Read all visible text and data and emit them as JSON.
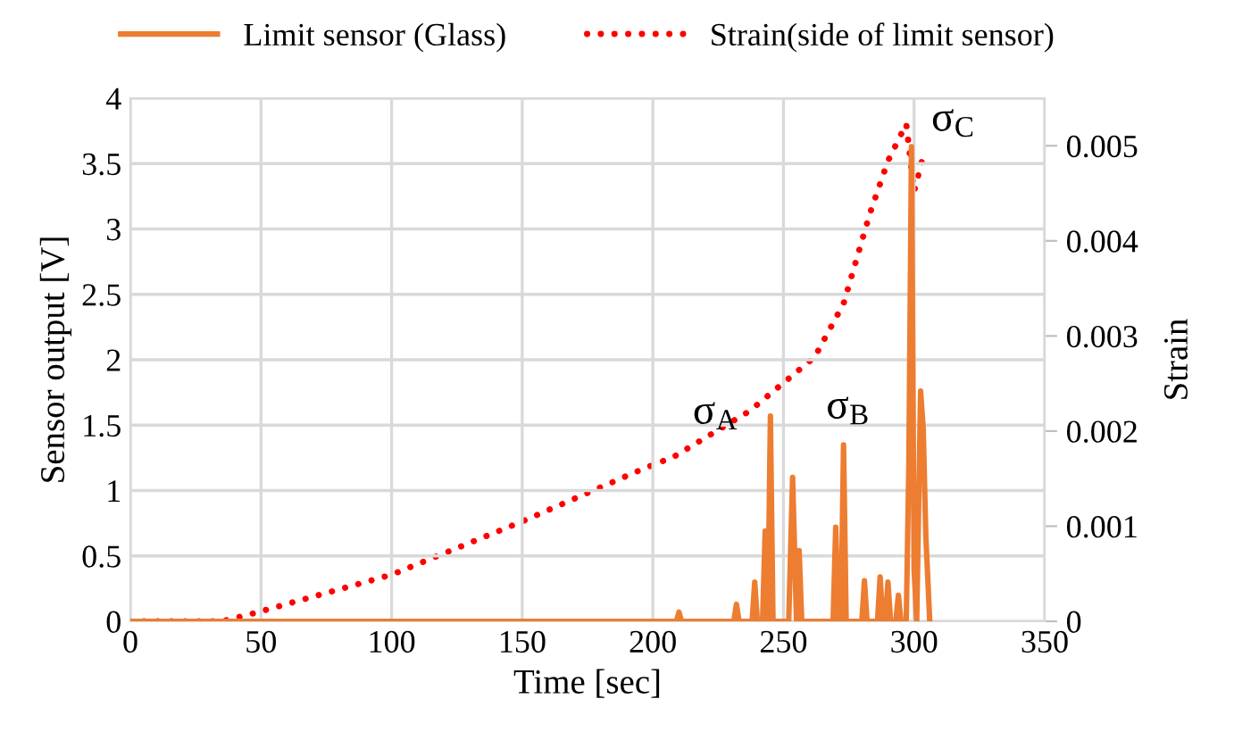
{
  "chart_data": {
    "type": "line",
    "xlabel": "Time [sec]",
    "ylabel": "Sensor output [V]",
    "y2label": "Strain",
    "xlim": [
      0,
      350
    ],
    "xticks": [
      0,
      50,
      100,
      150,
      200,
      250,
      300,
      350
    ],
    "ylim": [
      0,
      4
    ],
    "yticks": [
      0,
      0.5,
      1,
      1.5,
      2,
      2.5,
      3,
      3.5,
      4
    ],
    "y2lim": [
      0,
      0.0055
    ],
    "y2ticks": [
      0,
      0.001,
      0.002,
      0.003,
      0.004,
      0.005
    ],
    "grid": true,
    "legend": "top",
    "series": [
      {
        "name": "Limit sensor (Glass)",
        "color": "#ed7d31",
        "line_style": "solid",
        "x": [
          0,
          209,
          210,
          211,
          231,
          232,
          233,
          238,
          239,
          240,
          242,
          243,
          244,
          245,
          246,
          247,
          252,
          253.5,
          255,
          256,
          257,
          269,
          270,
          271,
          272,
          273,
          274,
          280,
          281,
          282,
          286,
          287,
          288,
          289,
          290,
          291,
          293,
          294,
          295,
          297,
          298,
          299,
          300,
          301,
          302.5,
          303.5,
          304.5,
          306
        ],
        "values": [
          0,
          0,
          0.07,
          0,
          0,
          0.13,
          0,
          0,
          0.3,
          0,
          0,
          0.69,
          0,
          1.57,
          0,
          0,
          0,
          1.1,
          0,
          0.54,
          0,
          0,
          0.72,
          0,
          0,
          1.35,
          0,
          0,
          0.31,
          0,
          0,
          0.34,
          0,
          0,
          0.3,
          0,
          0,
          0.2,
          0,
          0,
          1.2,
          3.63,
          0.4,
          0,
          1.76,
          1.47,
          0.65,
          0
        ]
      },
      {
        "name": "Strain(side of limit sensor)",
        "color": "#ff0000",
        "line_style": "dotted",
        "axis": "y2",
        "x": [
          0,
          20,
          35,
          48,
          100,
          150,
          196,
          208,
          237,
          262,
          273,
          283,
          290,
          297,
          300,
          303
        ],
        "values": [
          0,
          0,
          0,
          9e-05,
          0.00049,
          0.00105,
          0.0016,
          0.00173,
          0.00221,
          0.00278,
          0.00334,
          0.00428,
          0.00484,
          0.00523,
          0.00452,
          0.00484
        ]
      }
    ],
    "annotations": [
      "σ$_{A}$",
      "σ$_{B}$",
      "σ$_{C}$"
    ]
  }
}
